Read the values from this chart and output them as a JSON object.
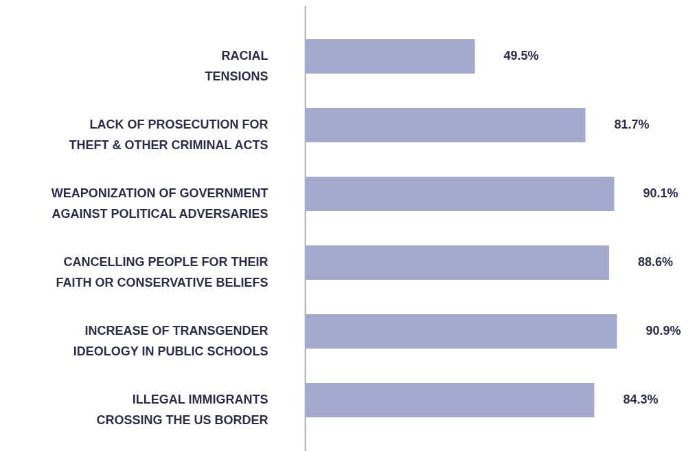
{
  "chart_data": {
    "type": "bar",
    "orientation": "horizontal",
    "categories": [
      "RACIAL\nTENSIONS",
      "LACK OF PROSECUTION FOR\nTHEFT & OTHER CRIMINAL ACTS",
      "WEAPONIZATION OF GOVERNMENT\nAGAINST POLITICAL ADVERSARIES",
      "CANCELLING PEOPLE FOR THEIR\nFAITH OR CONSERVATIVE BELIEFS",
      "INCREASE OF TRANSGENDER\nIDEOLOGY IN PUBLIC SCHOOLS",
      "ILLEGAL IMMIGRANTS\nCROSSING THE US BORDER"
    ],
    "values": [
      49.5,
      81.7,
      90.1,
      88.6,
      90.9,
      84.3
    ],
    "value_labels": [
      "49.5%",
      "81.7%",
      "90.1%",
      "88.6%",
      "90.9%",
      "84.3%"
    ],
    "color": "#a3aacd"
  }
}
